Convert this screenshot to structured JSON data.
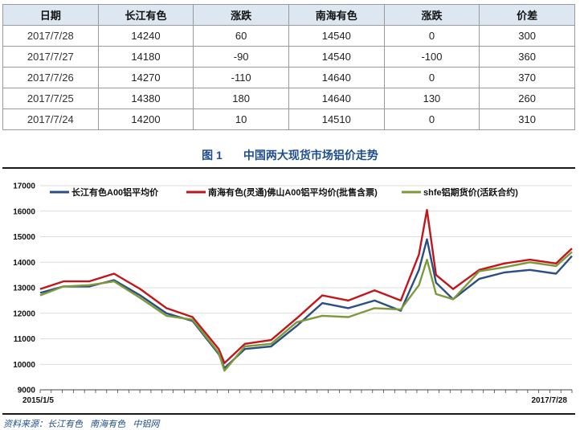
{
  "table": {
    "headers": [
      "日期",
      "长江有色",
      "涨跌",
      "南海有色",
      "涨跌",
      "价差"
    ],
    "rows": [
      [
        "2017/7/28",
        "14240",
        "60",
        "14540",
        "0",
        "300"
      ],
      [
        "2017/7/27",
        "14180",
        "-90",
        "14540",
        "-100",
        "360"
      ],
      [
        "2017/7/26",
        "14270",
        "-110",
        "14640",
        "0",
        "370"
      ],
      [
        "2017/7/25",
        "14380",
        "180",
        "14640",
        "130",
        "260"
      ],
      [
        "2017/7/24",
        "14200",
        "10",
        "14510",
        "0",
        "310"
      ]
    ]
  },
  "figure": {
    "number": "图 1",
    "title": "中国两大现货市场铝价走势"
  },
  "source_note": "资料来源：长江有色   南海有色   中铝网",
  "chart_data": {
    "type": "line",
    "title": "",
    "xlabel": "",
    "ylabel": "",
    "x_ticks": [
      "2015/1/5",
      "2017/7/28"
    ],
    "x_range": [
      "2015/1/5",
      "2017/7/28"
    ],
    "y_ticks": [
      9000,
      10000,
      11000,
      12000,
      13000,
      14000,
      15000,
      16000,
      17000
    ],
    "ylim": [
      9000,
      17000
    ],
    "grid": "horizontal",
    "legend_position": "top",
    "x": [
      "2015/1/5",
      "2015/2/15",
      "2015/4/1",
      "2015/5/15",
      "2015/6/30",
      "2015/8/15",
      "2015/9/30",
      "2015/11/15",
      "2015/11/25",
      "2015/12/31",
      "2016/2/15",
      "2016/3/31",
      "2016/5/15",
      "2016/6/30",
      "2016/8/15",
      "2016/9/30",
      "2016/11/1",
      "2016/11/15",
      "2016/12/1",
      "2016/12/31",
      "2017/2/15",
      "2017/3/31",
      "2017/5/15",
      "2017/6/30",
      "2017/7/28"
    ],
    "series": [
      {
        "name": "长江有色A00铝平均价",
        "color": "#2b4f82",
        "values": [
          12800,
          13050,
          13050,
          13300,
          12700,
          12000,
          11700,
          10400,
          9850,
          10600,
          10700,
          11500,
          12400,
          12200,
          12500,
          12100,
          13700,
          14900,
          13200,
          12550,
          13350,
          13600,
          13700,
          13550,
          14240
        ]
      },
      {
        "name": "南海有色(灵通)佛山A00铝平均价(批售含票)",
        "color": "#c0161c",
        "values": [
          12950,
          13250,
          13250,
          13550,
          12950,
          12200,
          11850,
          10600,
          10050,
          10800,
          10950,
          11800,
          12700,
          12500,
          12900,
          12500,
          14300,
          16050,
          13500,
          12950,
          13700,
          13950,
          14100,
          13950,
          14540
        ]
      },
      {
        "name": "shfe铝期货价(活跃合约)",
        "color": "#7d9a3a",
        "values": [
          12700,
          13050,
          13100,
          13250,
          12600,
          11900,
          11750,
          10450,
          9750,
          10700,
          10800,
          11650,
          11900,
          11850,
          12200,
          12150,
          13100,
          14100,
          12750,
          12550,
          13650,
          13800,
          14000,
          13850,
          14400
        ]
      }
    ]
  }
}
